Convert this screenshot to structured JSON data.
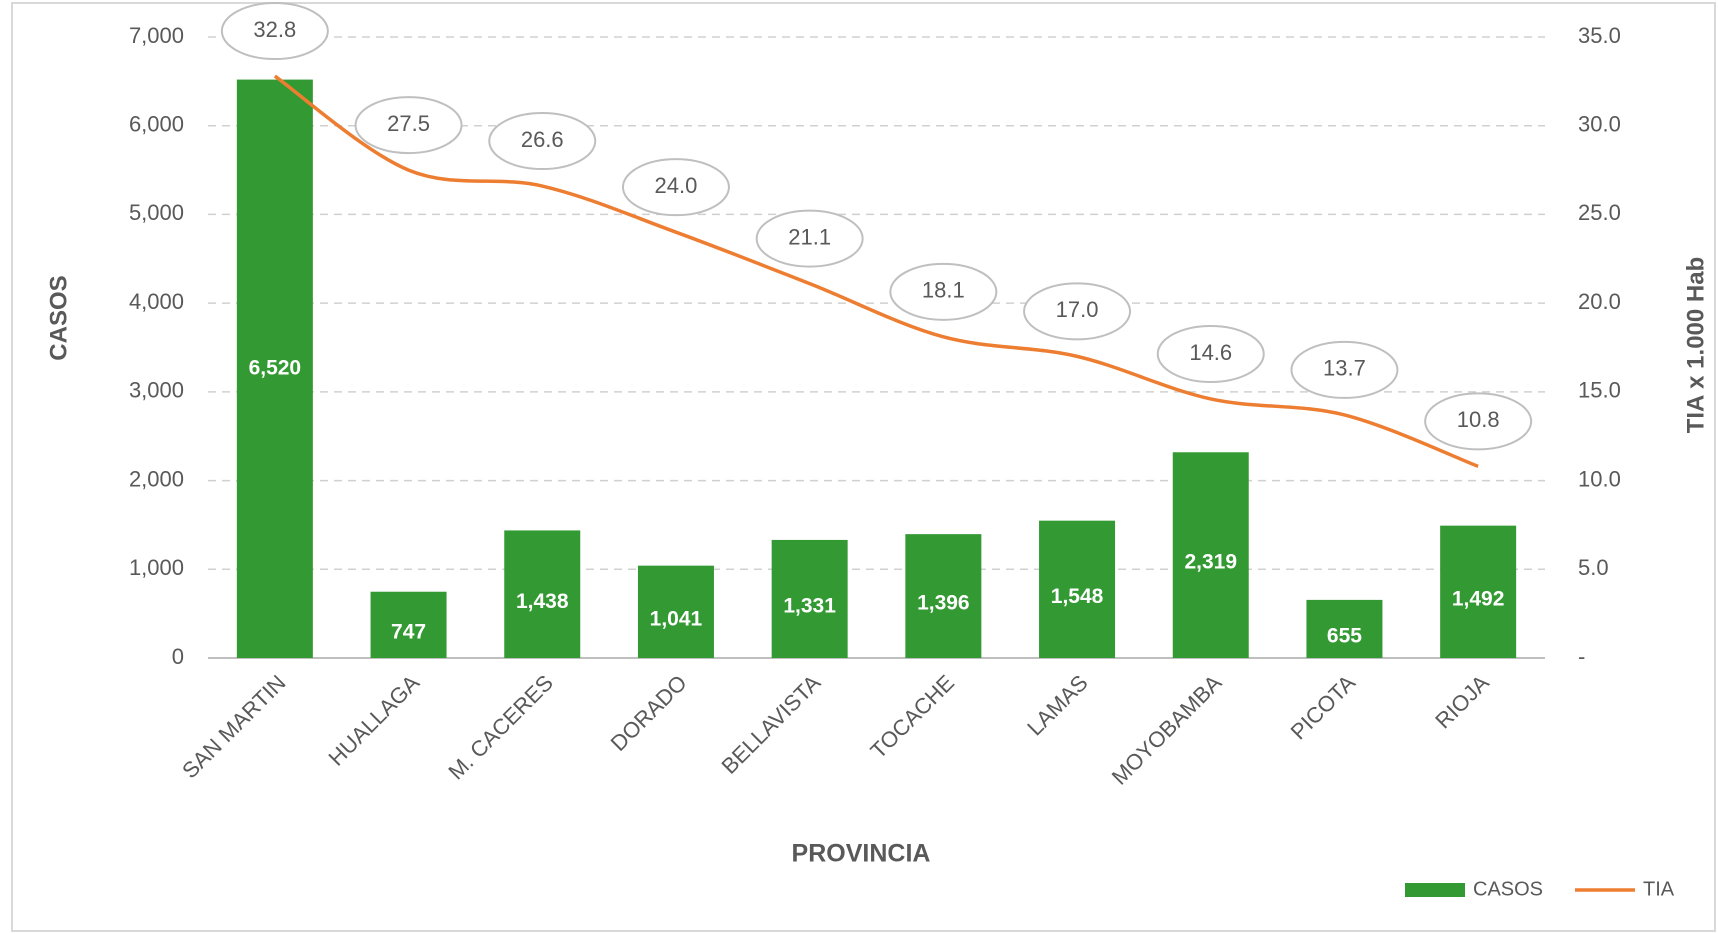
{
  "chart_data": {
    "type": "bar",
    "categories": [
      "SAN MARTIN",
      "HUALLAGA",
      "M. CACERES",
      "DORADO",
      "BELLAVISTA",
      "TOCACHE",
      "LAMAS",
      "MOYOBAMBA",
      "PICOTA",
      "RIOJA"
    ],
    "series": [
      {
        "name": "CASOS",
        "color": "#339933",
        "values": [
          6520,
          747,
          1438,
          1041,
          1331,
          1396,
          1548,
          2319,
          655,
          1492
        ],
        "value_labels": [
          "6,520",
          "747",
          "1,438",
          "1,041",
          "1,331",
          "1,396",
          "1,548",
          "2,319",
          "655",
          "1,492"
        ]
      },
      {
        "name": "TIA",
        "color": "#ed7d31",
        "axis": "y2",
        "values": [
          32.8,
          27.5,
          26.6,
          24.0,
          21.1,
          18.1,
          17.0,
          14.6,
          13.7,
          10.8
        ],
        "value_labels": [
          "32.8",
          "27.5",
          "26.6",
          "24.0",
          "21.1",
          "18.1",
          "17.0",
          "14.6",
          "13.7",
          "10.8"
        ]
      }
    ],
    "ylabel": "CASOS",
    "y2label": "TIA x 1.000 Hab",
    "xlabel": "PROVINCIA",
    "ylim": [
      0,
      7000
    ],
    "yticks": [
      0,
      {
        "value": 1000,
        "label": "1,000"
      },
      {
        "value": 2000,
        "label": "2,000"
      },
      {
        "value": 3000,
        "label": "3,000"
      },
      {
        "value": 4000,
        "label": "4,000"
      },
      {
        "value": 5000,
        "label": "5,000"
      },
      {
        "value": 6000,
        "label": "6,000"
      },
      {
        "value": 7000,
        "label": "7,000"
      }
    ],
    "y2lim": [
      0,
      35
    ],
    "y2ticks": [
      {
        "value": 0,
        "label": "-"
      },
      {
        "value": 5,
        "label": "5.0"
      },
      {
        "value": 10,
        "label": "10.0"
      },
      {
        "value": 15,
        "label": "15.0"
      },
      {
        "value": 20,
        "label": "20.0"
      },
      {
        "value": 25,
        "label": "25.0"
      },
      {
        "value": 30,
        "label": "30.0"
      },
      {
        "value": 35,
        "label": "35.0"
      }
    ],
    "grid": true,
    "legend": "bottom-right"
  }
}
